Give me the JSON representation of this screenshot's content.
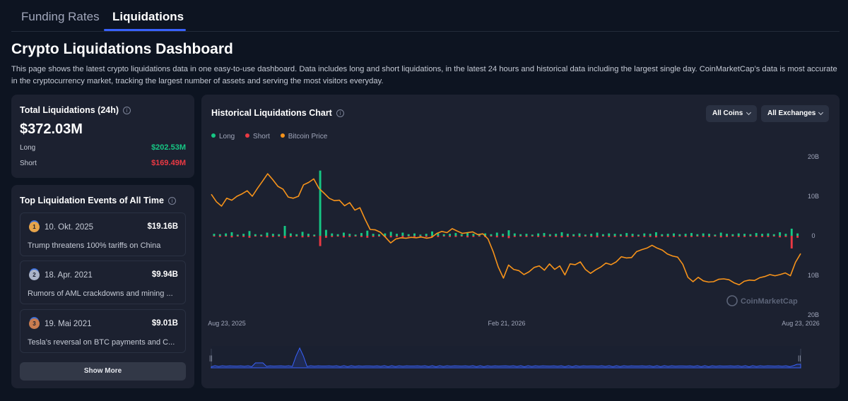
{
  "tabs": [
    {
      "label": "Funding Rates",
      "active": false
    },
    {
      "label": "Liquidations",
      "active": true
    }
  ],
  "page": {
    "title": "Crypto Liquidations Dashboard",
    "description": "This page shows the latest crypto liquidations data in one easy-to-use dashboard. Data includes long and short liquidations, in the latest 24 hours and historical data including the largest single day. CoinMarketCap’s data is most accurate in the cryptocurrency market, tracking the largest number of assets and serving the most visitors everyday."
  },
  "total": {
    "title": "Total Liquidations (24h)",
    "info_icon": "i",
    "value": "$372.03M",
    "long_label": "Long",
    "long_value": "$202.53M",
    "short_label": "Short",
    "short_value": "$169.49M"
  },
  "top_events": {
    "title": "Top Liquidation Events of All Time",
    "events": [
      {
        "rank": "1",
        "medal": "gold",
        "date": "10. Okt. 2025",
        "value": "$19.16B",
        "description": "Trump threatens 100% tariffs on China"
      },
      {
        "rank": "2",
        "medal": "silver",
        "date": "18. Apr. 2021",
        "value": "$9.94B",
        "description": "Rumors of AML crackdowns and mining ..."
      },
      {
        "rank": "3",
        "medal": "bronze",
        "date": "19. Mai 2021",
        "value": "$9.01B",
        "description": "Tesla’s reversal on BTC payments and C..."
      }
    ],
    "show_more_label": "Show More"
  },
  "chart": {
    "title": "Historical Liquidations Chart",
    "filter_coins": "All Coins",
    "filter_exchanges": "All Exchanges",
    "legend": [
      {
        "name": "Long",
        "color": "#16c784"
      },
      {
        "name": "Short",
        "color": "#ea3943"
      },
      {
        "name": "Bitcoin Price",
        "color": "#f7931a"
      }
    ],
    "watermark": "CoinMarketCap",
    "y_ticks": [
      "20B",
      "10B",
      "0",
      "10B",
      "20B"
    ],
    "x_ticks": [
      "Aug 23, 2025",
      "Feb 21, 2026",
      "Aug 23, 2026"
    ]
  },
  "chart_data": {
    "type": "bar",
    "title": "Historical Liquidations Chart",
    "y_ticks": [
      "20B",
      "10B",
      "0",
      "10B",
      "20B"
    ],
    "ylim": [
      -20,
      20
    ],
    "y_unit": "B",
    "x_range": [
      "2025-08-23",
      "2026-08-23"
    ],
    "x_ticks": [
      "Aug 23, 2025",
      "Feb 21, 2026",
      "Aug 23, 2026"
    ],
    "legend_position": "top-left",
    "grid": false,
    "series": [
      {
        "name": "Long",
        "color": "#16c784",
        "type": "bar",
        "values": [
          0.5,
          0.4,
          0.6,
          0.9,
          0.3,
          0.5,
          1.2,
          0.4,
          0.3,
          0.8,
          0.5,
          0.4,
          2.5,
          0.6,
          0.4,
          1.0,
          0.5,
          0.3,
          16.5,
          1.5,
          0.6,
          0.4,
          0.8,
          0.5,
          0.3,
          0.7,
          1.3,
          0.5,
          0.4,
          0.6,
          1.0,
          0.5,
          0.8,
          0.4,
          0.6,
          0.3,
          0.5,
          1.1,
          0.6,
          0.4,
          0.5,
          0.7,
          0.4,
          0.9,
          0.5,
          0.3,
          0.6,
          0.4,
          0.8,
          0.5,
          1.4,
          0.6,
          0.4,
          0.5,
          0.3,
          0.6,
          0.7,
          0.4,
          0.5,
          0.9,
          0.5,
          0.4,
          0.6,
          0.3,
          0.5,
          0.8,
          0.4,
          0.6,
          0.5,
          0.4,
          0.7,
          0.5,
          0.3,
          0.6,
          0.5,
          0.9,
          0.4,
          0.5,
          0.6,
          0.4,
          0.5,
          0.7,
          0.4,
          0.6,
          0.5,
          0.3,
          0.8,
          0.5,
          0.4,
          0.6,
          0.5,
          0.4,
          0.7,
          0.5,
          0.6,
          0.4,
          0.9,
          0.5,
          1.8,
          0.6
        ]
      },
      {
        "name": "Short",
        "color": "#ea3943",
        "type": "bar",
        "values": [
          -0.2,
          -0.3,
          -0.2,
          -0.4,
          -0.2,
          -0.3,
          -0.5,
          -0.2,
          -0.2,
          -0.4,
          -0.3,
          -0.2,
          -0.6,
          -0.3,
          -0.2,
          -0.4,
          -0.3,
          -0.2,
          -2.6,
          -0.5,
          -0.3,
          -0.2,
          -0.4,
          -0.3,
          -0.2,
          -0.3,
          -0.5,
          -0.3,
          -0.2,
          -0.3,
          -0.4,
          -0.3,
          -0.4,
          -0.2,
          -0.3,
          -0.2,
          -0.3,
          -0.4,
          -0.3,
          -0.2,
          -0.3,
          -0.3,
          -0.2,
          -0.4,
          -0.3,
          -0.2,
          -0.3,
          -0.2,
          -0.4,
          -0.3,
          -0.6,
          -0.3,
          -0.2,
          -0.3,
          -0.2,
          -0.3,
          -0.3,
          -0.2,
          -0.3,
          -0.4,
          -0.3,
          -0.2,
          -0.3,
          -0.2,
          -0.3,
          -0.4,
          -0.2,
          -0.3,
          -0.3,
          -0.2,
          -0.3,
          -0.3,
          -0.2,
          -0.3,
          -0.3,
          -0.4,
          -0.2,
          -0.3,
          -0.3,
          -0.2,
          -0.3,
          -0.3,
          -0.2,
          -0.3,
          -0.3,
          -0.2,
          -0.4,
          -0.3,
          -0.2,
          -0.3,
          -0.3,
          -0.2,
          -0.3,
          -0.3,
          -0.3,
          -0.2,
          -0.4,
          -0.3,
          -3.2,
          -0.5
        ]
      },
      {
        "name": "Bitcoin Price",
        "color": "#f7931a",
        "type": "line",
        "values": [
          10.5,
          8.6,
          7.5,
          9.5,
          9.0,
          10.0,
          10.6,
          11.4,
          10.0,
          12.0,
          13.8,
          15.7,
          14.2,
          12.5,
          11.8,
          9.8,
          9.5,
          10.0,
          12.9,
          13.5,
          14.4,
          12.0,
          10.8,
          9.5,
          8.9,
          9.0,
          7.6,
          8.4,
          6.5,
          7.1,
          4.2,
          1.6,
          1.5,
          0.9,
          -0.4,
          -1.8,
          -0.8,
          -0.5,
          -0.6,
          -0.4,
          -0.5,
          -0.3,
          -0.6,
          -0.4,
          0.6,
          1.1,
          0.8,
          1.8,
          1.2,
          0.6,
          0.8,
          1.0,
          0.3,
          0.5,
          -0.8,
          -4.0,
          -7.9,
          -10.7,
          -7.4,
          -8.5,
          -8.8,
          -9.8,
          -9.1,
          -8.0,
          -7.6,
          -8.7,
          -7.1,
          -8.5,
          -7.6,
          -9.9,
          -7.1,
          -7.3,
          -6.6,
          -8.5,
          -9.5,
          -8.6,
          -7.9,
          -6.9,
          -7.3,
          -6.6,
          -5.3,
          -5.6,
          -5.5,
          -4.0,
          -3.5,
          -3.1,
          -2.4,
          -3.1,
          -3.6,
          -4.6,
          -5.1,
          -5.4,
          -7.2,
          -10.5,
          -11.6,
          -10.5,
          -11.4,
          -11.7,
          -11.6,
          -11.0,
          -10.9,
          -11.1,
          -11.9,
          -12.4,
          -11.5,
          -11.2,
          -11.3,
          -10.6,
          -10.3,
          -9.8,
          -10.1,
          -9.8,
          -9.4,
          -10.1,
          -6.7,
          -4.5
        ]
      }
    ],
    "navigator": {
      "peak_at_fraction": 0.15
    }
  }
}
